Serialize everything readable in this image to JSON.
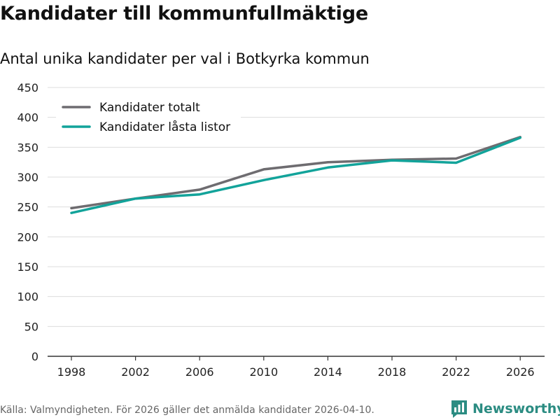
{
  "title": "Kandidater till kommunfullmäktige",
  "subtitle": "Antal unika kandidater per val i Botkyrka kommun",
  "source": "Källa: Valmyndigheten. För 2026 gäller det anmälda kandidater 2026-04-10.",
  "brand": "Newsworthy",
  "colors": {
    "series_total": "#6e6c70",
    "series_locked": "#12a39a",
    "brand": "#2b8c82",
    "grid": "#dddddd",
    "axis": "#333333"
  },
  "chart_data": {
    "type": "line",
    "title": "Kandidater till kommunfullmäktige",
    "subtitle": "Antal unika kandidater per val i Botkyrka kommun",
    "xlabel": "",
    "ylabel": "",
    "categories": [
      "1998",
      "2002",
      "2006",
      "2010",
      "2014",
      "2018",
      "2022",
      "2026"
    ],
    "ylim": [
      0,
      450
    ],
    "yticks": [
      0,
      50,
      100,
      150,
      200,
      250,
      300,
      350,
      400,
      450
    ],
    "grid": true,
    "legend_position": "top-left",
    "series": [
      {
        "name": "Kandidater totalt",
        "color": "#6e6c70",
        "values": [
          248,
          264,
          279,
          313,
          325,
          329,
          331,
          367
        ]
      },
      {
        "name": "Kandidater låsta listor",
        "color": "#12a39a",
        "values": [
          240,
          264,
          271,
          295,
          316,
          328,
          324,
          366
        ]
      }
    ]
  }
}
